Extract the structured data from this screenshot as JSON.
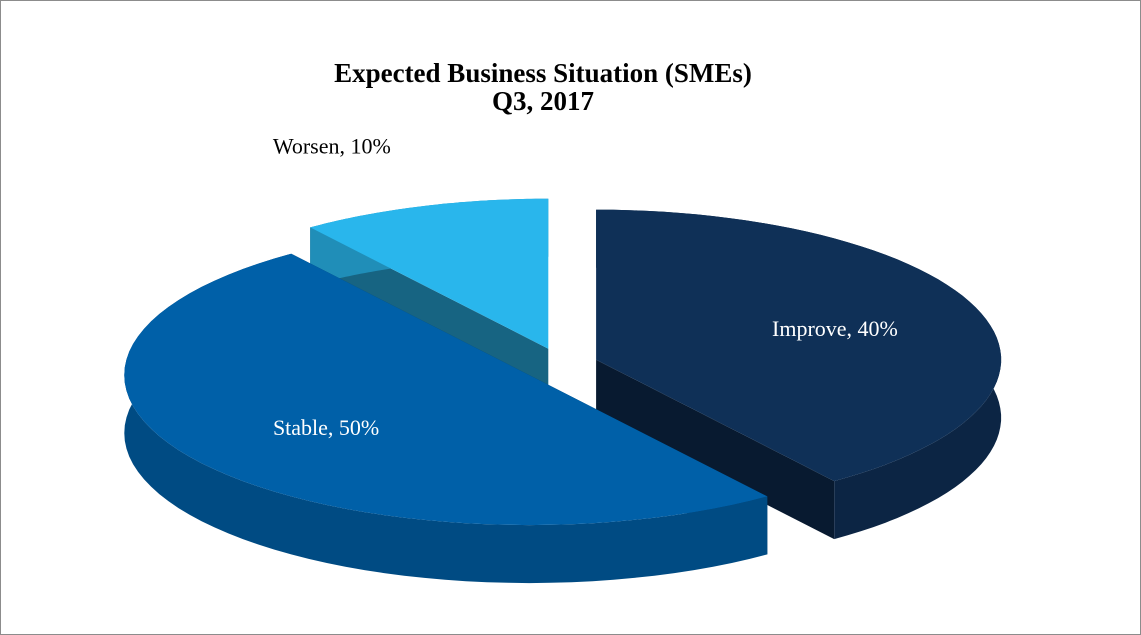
{
  "chart_data": {
    "type": "pie",
    "title": [
      "Expected Business Situation (SMEs)",
      "Q3, 2017"
    ],
    "categories": [
      "Improve",
      "Stable",
      "Worsen"
    ],
    "values": [
      40,
      50,
      10
    ],
    "value_labels": [
      "Improve, 40%",
      "Stable, 50%",
      "Worsen, 10%"
    ],
    "colors": [
      "#0f3057",
      "#0060a8",
      "#29b6ec"
    ]
  }
}
